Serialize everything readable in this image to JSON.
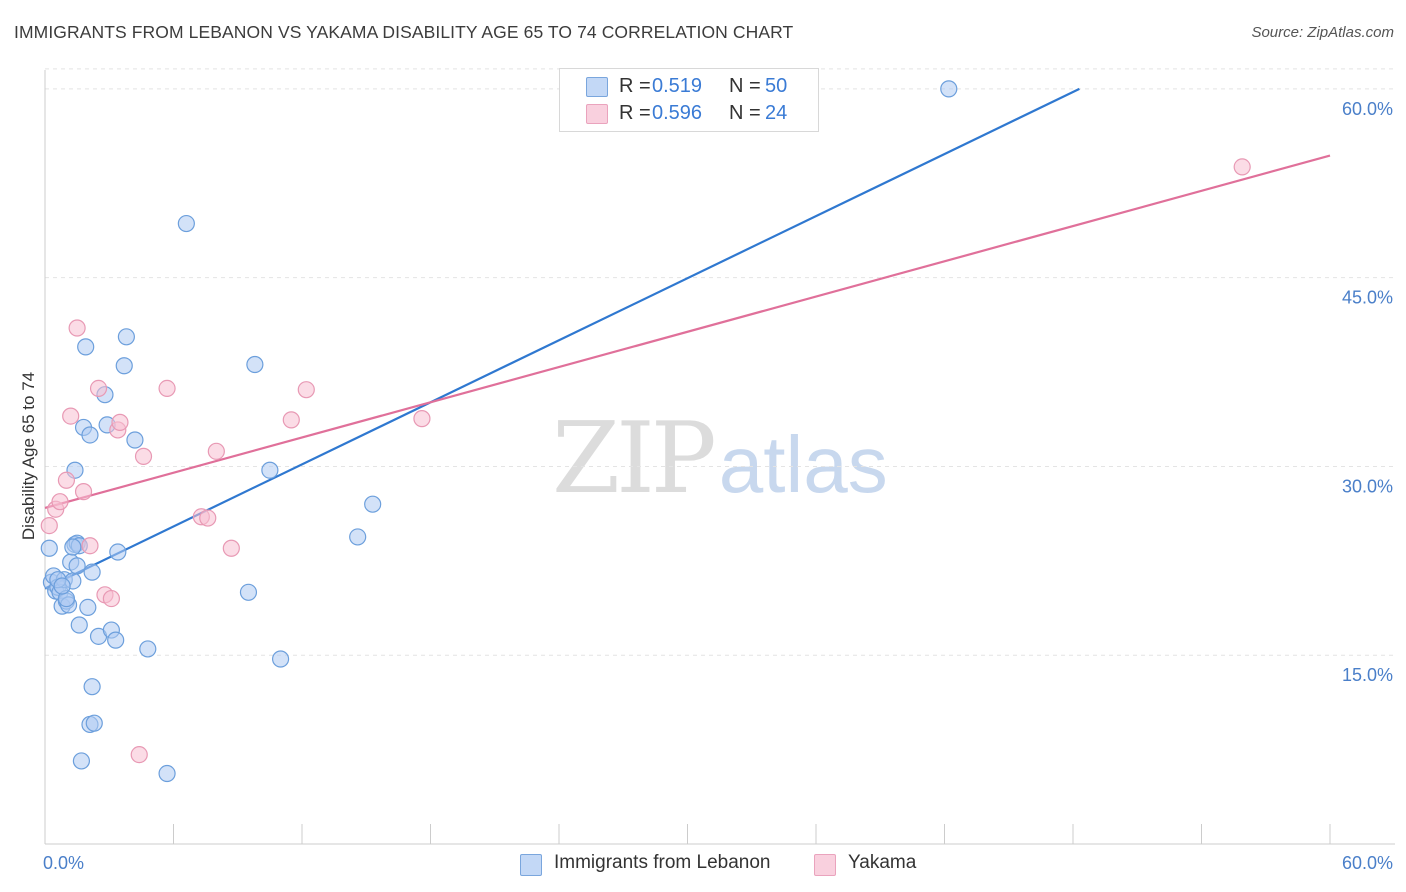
{
  "header": {
    "title": "IMMIGRANTS FROM LEBANON VS YAKAMA DISABILITY AGE 65 TO 74 CORRELATION CHART",
    "source": "Source: ZipAtlas.com"
  },
  "watermark": {
    "zip": "ZIP",
    "atlas": "atlas"
  },
  "colors": {
    "blue_fill": "#aecbf2",
    "blue_stroke": "#6c9fdc",
    "blue_line": "#2f78d0",
    "pink_fill": "#f7bfd2",
    "pink_stroke": "#e899b4",
    "pink_line": "#e0709a",
    "tick_text": "#4a7fc9",
    "grid": "#e4e4e4"
  },
  "legend": {
    "rows": [
      {
        "r_label": "R =",
        "r_value": "0.519",
        "n_label": "N =",
        "n_value": "50"
      },
      {
        "r_label": "R =",
        "r_value": "0.596",
        "n_label": "N =",
        "n_value": "24"
      }
    ]
  },
  "bottom_legend": {
    "series1": "Immigrants from Lebanon",
    "series2": "Yakama"
  },
  "chart_data": {
    "type": "scatter",
    "title": "IMMIGRANTS FROM LEBANON VS YAKAMA DISABILITY AGE 65 TO 74 CORRELATION CHART",
    "xlabel": "",
    "ylabel": "Disability Age 65 to 74",
    "xlim": [
      0,
      60
    ],
    "ylim": [
      0,
      61.5
    ],
    "x_tick_labels": [
      "0.0%",
      "60.0%"
    ],
    "y_ticks": [
      15,
      30,
      45,
      60
    ],
    "y_tick_labels": [
      "15.0%",
      "30.0%",
      "45.0%",
      "60.0%"
    ],
    "grid": true,
    "series": [
      {
        "name": "Immigrants from Lebanon",
        "color": "#aecbf2",
        "points": [
          [
            0.2,
            23.5
          ],
          [
            0.3,
            20.8
          ],
          [
            0.4,
            21.3
          ],
          [
            0.5,
            20.1
          ],
          [
            0.6,
            20.4
          ],
          [
            0.7,
            20.0
          ],
          [
            0.8,
            18.9
          ],
          [
            0.9,
            21.0
          ],
          [
            1.0,
            19.3
          ],
          [
            1.1,
            19.0
          ],
          [
            1.2,
            22.4
          ],
          [
            1.3,
            20.9
          ],
          [
            1.4,
            23.8
          ],
          [
            1.5,
            23.9
          ],
          [
            1.6,
            23.7
          ],
          [
            1.5,
            22.1
          ],
          [
            1.4,
            29.7
          ],
          [
            1.6,
            17.4
          ],
          [
            1.7,
            6.6
          ],
          [
            1.8,
            33.1
          ],
          [
            1.9,
            39.5
          ],
          [
            2.0,
            18.8
          ],
          [
            2.1,
            32.5
          ],
          [
            2.1,
            9.5
          ],
          [
            2.2,
            21.6
          ],
          [
            2.2,
            12.5
          ],
          [
            2.3,
            9.6
          ],
          [
            2.5,
            16.5
          ],
          [
            2.8,
            35.7
          ],
          [
            2.9,
            33.3
          ],
          [
            3.1,
            17.0
          ],
          [
            3.3,
            16.2
          ],
          [
            3.4,
            23.2
          ],
          [
            3.7,
            38.0
          ],
          [
            3.8,
            40.3
          ],
          [
            4.2,
            32.1
          ],
          [
            4.8,
            15.5
          ],
          [
            5.7,
            5.6
          ],
          [
            6.6,
            49.3
          ],
          [
            9.5,
            20.0
          ],
          [
            9.8,
            38.1
          ],
          [
            10.5,
            29.7
          ],
          [
            11.0,
            14.7
          ],
          [
            14.6,
            24.4
          ],
          [
            15.3,
            27.0
          ],
          [
            42.2,
            60.0
          ],
          [
            0.6,
            21.0
          ],
          [
            1.0,
            19.5
          ],
          [
            1.3,
            23.6
          ],
          [
            0.8,
            20.5
          ]
        ]
      },
      {
        "name": "Yakama",
        "color": "#f7bfd2",
        "points": [
          [
            0.2,
            25.3
          ],
          [
            0.5,
            26.6
          ],
          [
            0.7,
            27.2
          ],
          [
            1.0,
            28.9
          ],
          [
            1.2,
            34.0
          ],
          [
            1.5,
            41.0
          ],
          [
            1.8,
            28.0
          ],
          [
            2.1,
            23.7
          ],
          [
            2.5,
            36.2
          ],
          [
            2.8,
            19.8
          ],
          [
            3.1,
            19.5
          ],
          [
            3.4,
            32.9
          ],
          [
            3.5,
            33.5
          ],
          [
            4.4,
            7.1
          ],
          [
            4.6,
            30.8
          ],
          [
            5.7,
            36.2
          ],
          [
            7.3,
            26.0
          ],
          [
            7.6,
            25.9
          ],
          [
            8.0,
            31.2
          ],
          [
            8.7,
            23.5
          ],
          [
            11.5,
            33.7
          ],
          [
            12.2,
            36.1
          ],
          [
            17.6,
            33.8
          ],
          [
            55.9,
            53.8
          ]
        ]
      }
    ],
    "trendlines": [
      {
        "series": "Immigrants from Lebanon",
        "x": [
          0,
          48.3
        ],
        "y": [
          20.3,
          60.0
        ]
      },
      {
        "series": "Yakama",
        "x": [
          0,
          60
        ],
        "y": [
          26.7,
          54.7
        ]
      }
    ]
  }
}
